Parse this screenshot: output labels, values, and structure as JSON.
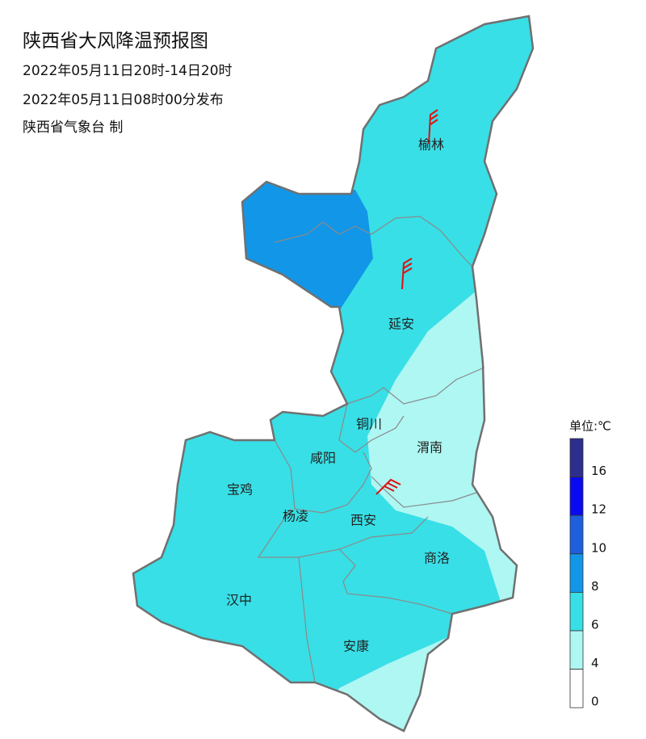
{
  "header": {
    "title": "陕西省大风降温预报图",
    "period": "2022年05月11日20时-14日20时",
    "issued": "2022年05月11日08时00分发布",
    "agency": "陕西省气象台 制"
  },
  "cities": [
    "榆林",
    "延安",
    "铜川",
    "渭南",
    "咸阳",
    "宝鸡",
    "杨凌",
    "西安",
    "商洛",
    "汉中",
    "安康"
  ],
  "legend": {
    "unit": "单位:℃",
    "levels": [
      {
        "value": 16,
        "color": "#2e2e8c"
      },
      {
        "value": 12,
        "color": "#0a0af0"
      },
      {
        "value": 10,
        "color": "#1e5fe0"
      },
      {
        "value": 8,
        "color": "#1296e8"
      },
      {
        "value": 6,
        "color": "#38dfe6"
      },
      {
        "value": 4,
        "color": "#aef7f2"
      },
      {
        "value": 0,
        "color": "#ffffff"
      }
    ]
  }
}
